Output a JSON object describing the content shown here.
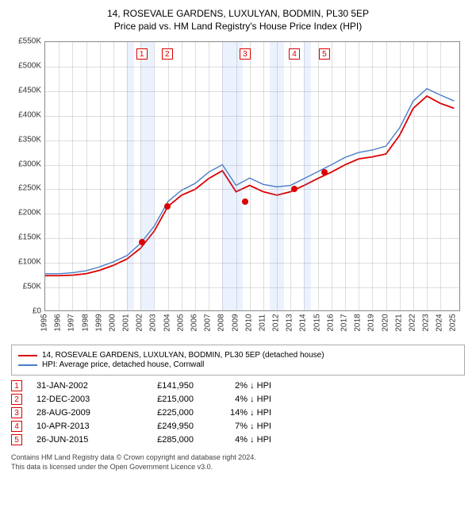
{
  "title": "14, ROSEVALE GARDENS, LUXULYAN, BODMIN, PL30 5EP",
  "subtitle": "Price paid vs. HM Land Registry's House Price Index (HPI)",
  "chart": {
    "type": "line",
    "background_color": "#ffffff",
    "grid_color": "rgba(136,136,136,0.28)",
    "border_color": "#888888",
    "ylim": [
      0,
      550000
    ],
    "ytick_step": 50000,
    "yticks": [
      "£0",
      "£50K",
      "£100K",
      "£150K",
      "£200K",
      "£250K",
      "£300K",
      "£350K",
      "£400K",
      "£450K",
      "£500K",
      "£550K"
    ],
    "xlim_years": [
      1995,
      2025.5
    ],
    "xticks": [
      "1995",
      "1996",
      "1997",
      "1998",
      "1999",
      "2000",
      "2001",
      "2002",
      "2003",
      "2004",
      "2005",
      "2006",
      "2007",
      "2008",
      "2009",
      "2010",
      "2011",
      "2012",
      "2013",
      "2014",
      "2015",
      "2016",
      "2017",
      "2018",
      "2019",
      "2020",
      "2021",
      "2022",
      "2023",
      "2024",
      "2025"
    ],
    "series": [
      {
        "name": "hpi",
        "color": "#4a7dc9",
        "width": 1.4,
        "points": [
          [
            1995,
            78000
          ],
          [
            1996,
            78000
          ],
          [
            1997,
            80000
          ],
          [
            1998,
            84000
          ],
          [
            1999,
            92000
          ],
          [
            2000,
            102000
          ],
          [
            2001,
            115000
          ],
          [
            2002,
            140000
          ],
          [
            2003,
            175000
          ],
          [
            2004,
            225000
          ],
          [
            2005,
            248000
          ],
          [
            2006,
            262000
          ],
          [
            2007,
            285000
          ],
          [
            2008,
            300000
          ],
          [
            2009,
            258000
          ],
          [
            2010,
            273000
          ],
          [
            2011,
            260000
          ],
          [
            2012,
            255000
          ],
          [
            2013,
            258000
          ],
          [
            2014,
            272000
          ],
          [
            2015,
            286000
          ],
          [
            2016,
            300000
          ],
          [
            2017,
            315000
          ],
          [
            2018,
            325000
          ],
          [
            2019,
            330000
          ],
          [
            2020,
            338000
          ],
          [
            2021,
            375000
          ],
          [
            2022,
            430000
          ],
          [
            2023,
            455000
          ],
          [
            2024,
            442000
          ],
          [
            2025,
            430000
          ]
        ]
      },
      {
        "name": "property",
        "color": "#dc0000",
        "width": 1.8,
        "points": [
          [
            1995,
            74000
          ],
          [
            1996,
            74000
          ],
          [
            1997,
            75000
          ],
          [
            1998,
            78000
          ],
          [
            1999,
            85000
          ],
          [
            2000,
            95000
          ],
          [
            2001,
            108000
          ],
          [
            2002,
            130000
          ],
          [
            2003,
            165000
          ],
          [
            2004,
            215000
          ],
          [
            2005,
            238000
          ],
          [
            2006,
            250000
          ],
          [
            2007,
            272000
          ],
          [
            2008,
            288000
          ],
          [
            2009,
            245000
          ],
          [
            2010,
            258000
          ],
          [
            2011,
            245000
          ],
          [
            2012,
            238000
          ],
          [
            2013,
            245000
          ],
          [
            2014,
            258000
          ],
          [
            2015,
            272000
          ],
          [
            2016,
            285000
          ],
          [
            2017,
            300000
          ],
          [
            2018,
            312000
          ],
          [
            2019,
            316000
          ],
          [
            2020,
            322000
          ],
          [
            2021,
            360000
          ],
          [
            2022,
            415000
          ],
          [
            2023,
            440000
          ],
          [
            2024,
            425000
          ],
          [
            2025,
            415000
          ]
        ]
      }
    ],
    "transactions": [
      {
        "n": "1",
        "year": 2002.08,
        "price": 141950,
        "date": "31-JAN-2002",
        "price_label": "£141,950",
        "diff": "2% ↓ HPI"
      },
      {
        "n": "2",
        "year": 2003.95,
        "price": 215000,
        "date": "12-DEC-2003",
        "price_label": "£215,000",
        "diff": "4% ↓ HPI"
      },
      {
        "n": "3",
        "year": 2009.66,
        "price": 225000,
        "date": "28-AUG-2009",
        "price_label": "£225,000",
        "diff": "14% ↓ HPI"
      },
      {
        "n": "4",
        "year": 2013.28,
        "price": 249950,
        "date": "10-APR-2013",
        "price_label": "£249,950",
        "diff": "7% ↓ HPI"
      },
      {
        "n": "5",
        "year": 2015.48,
        "price": 285000,
        "date": "26-JUN-2015",
        "price_label": "£285,000",
        "diff": "4% ↓ HPI"
      }
    ],
    "transaction_color": "#dc0000",
    "dot_color": "#dc0000",
    "shade_color": "rgba(100,149,237,0.12)",
    "shade_bands": [
      [
        2001,
        2001.5
      ],
      [
        2002,
        2003
      ],
      [
        2008,
        2009.5
      ],
      [
        2011.5,
        2012.5
      ],
      [
        2014,
        2014.5
      ]
    ]
  },
  "legend": {
    "items": [
      {
        "color": "#dc0000",
        "label": "14, ROSEVALE GARDENS, LUXULYAN, BODMIN, PL30 5EP (detached house)"
      },
      {
        "color": "#4a7dc9",
        "label": "HPI: Average price, detached house, Cornwall"
      }
    ]
  },
  "footer1": "Contains HM Land Registry data © Crown copyright and database right 2024.",
  "footer2": "This data is licensed under the Open Government Licence v3.0."
}
